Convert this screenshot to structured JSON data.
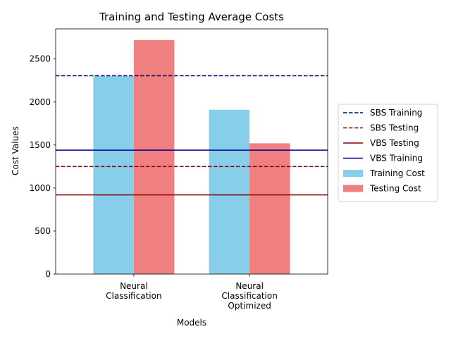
{
  "chart_data": {
    "type": "bar",
    "title": "Training and Testing Average Costs",
    "xlabel": "Models",
    "ylabel": "Cost Values",
    "categories": [
      [
        "Neural",
        "Classification"
      ],
      [
        "Neural",
        "Classification",
        "Optimized"
      ]
    ],
    "series": [
      {
        "name": "Training Cost",
        "values": [
          2300,
          1910
        ],
        "color": "#87ceeb"
      },
      {
        "name": "Testing Cost",
        "values": [
          2720,
          1520
        ],
        "color": "#f08080"
      }
    ],
    "reference_lines": [
      {
        "name": "SBS Training",
        "value": 2305,
        "color": "#00008b",
        "style": "dashed"
      },
      {
        "name": "SBS Testing",
        "value": 1250,
        "color": "#8b0000",
        "style": "dashed"
      },
      {
        "name": "VBS Testing",
        "value": 920,
        "color": "#8b0000",
        "style": "solid"
      },
      {
        "name": "VBS Training",
        "value": 1440,
        "color": "#00008b",
        "style": "solid"
      }
    ],
    "ylim": [
      0,
      2850
    ],
    "yticks": [
      0,
      500,
      1000,
      1500,
      2000,
      2500
    ],
    "grid": false,
    "legend_position": "center-right, outside the plot"
  }
}
